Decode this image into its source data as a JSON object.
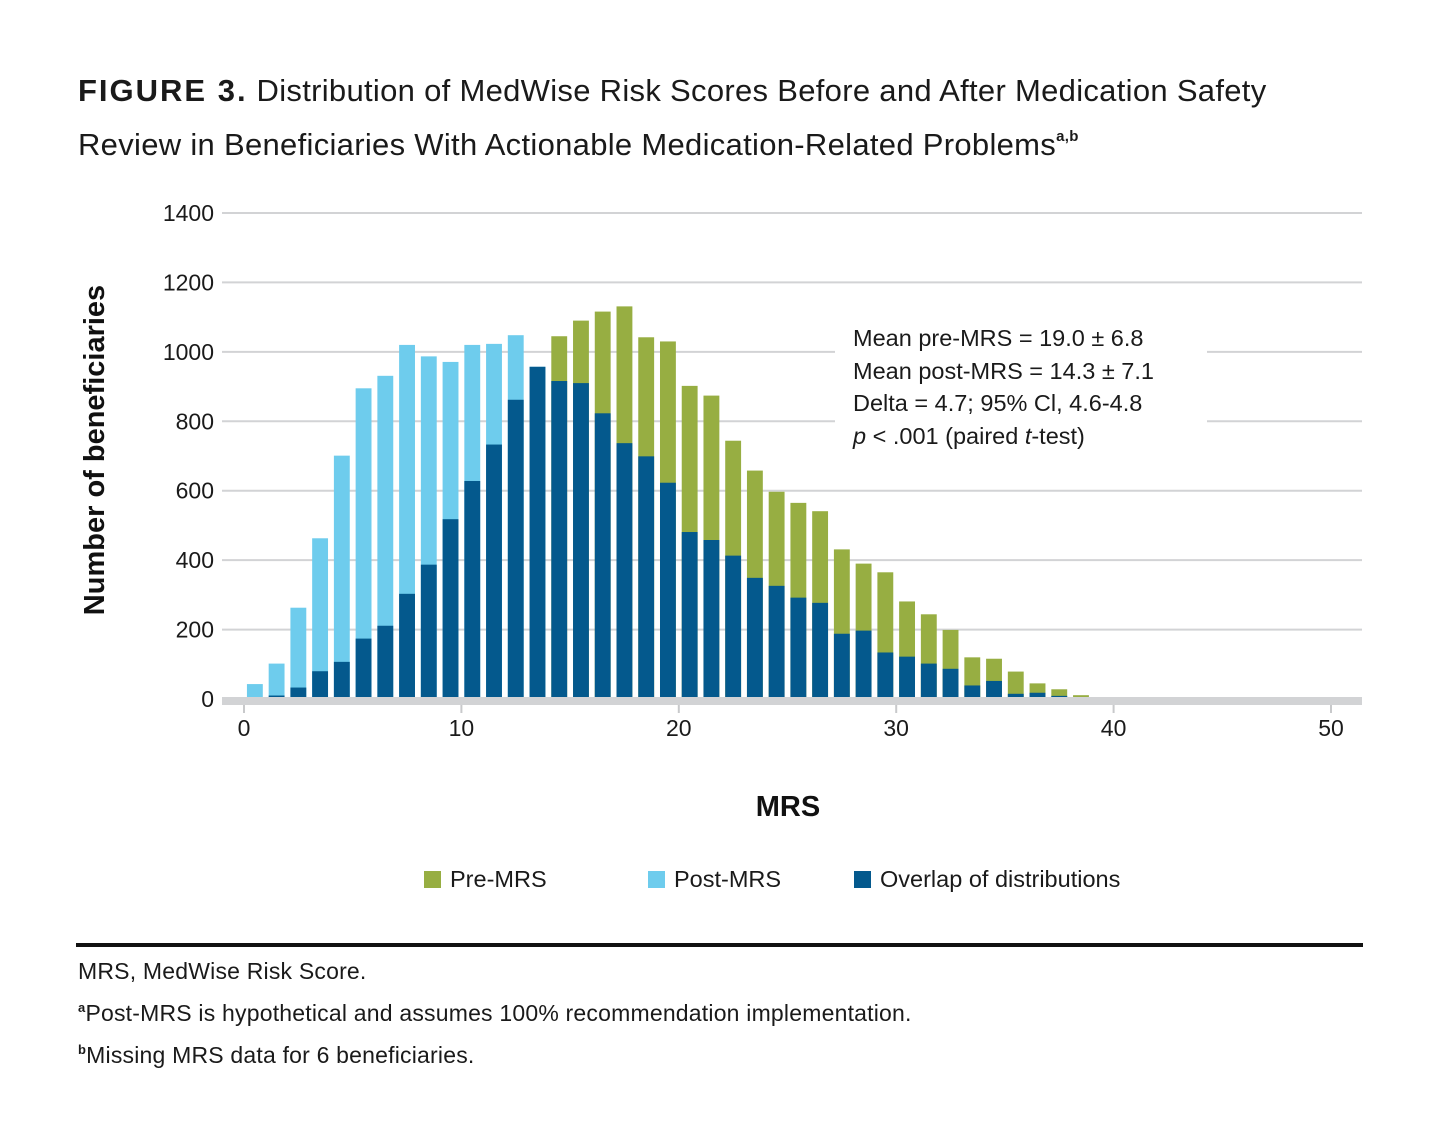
{
  "figure": {
    "label": "FIGURE 3.",
    "title_line1": "Distribution of MedWise Risk Scores Before and After Medication Safety",
    "title_line2": "Review in Beneficiaries With Actionable Medication-Related Problems",
    "title_superscript": "a,b"
  },
  "annotation": {
    "line1": "Mean pre-MRS = 19.0 ± 6.8",
    "line2": "Mean post-MRS = 14.3 ± 7.1",
    "line3": "Delta = 4.7; 95% Cl, 4.6-4.8",
    "line4_p": "p",
    "line4_mid": " < .001 (paired ",
    "line4_t": "t",
    "line4_end": "-test)"
  },
  "legend": [
    {
      "label": "Pre-MRS",
      "color": "#97ae42"
    },
    {
      "label": "Post-MRS",
      "color": "#6ecced"
    },
    {
      "label": "Overlap of distributions",
      "color": "#04598d"
    }
  ],
  "footnotes": {
    "abbrev": "MRS, MedWise Risk Score.",
    "a_mark": "a",
    "a_text": "Post-MRS is hypothetical and assumes 100% recommendation implementation.",
    "b_mark": "b",
    "b_text": "Missing MRS data for 6 beneficiaries."
  },
  "chart_data": {
    "type": "bar",
    "subtype": "overlapping histogram",
    "title": "Distribution of MedWise Risk Scores Before and After Medication Safety Review in Beneficiaries With Actionable Medication-Related Problems",
    "xlabel": "MRS",
    "ylabel": "Number of beneficiaries",
    "xlim": [
      0,
      50
    ],
    "ylim": [
      0,
      1400
    ],
    "xticks": [
      0,
      10,
      20,
      30,
      40,
      50
    ],
    "yticks": [
      0,
      200,
      400,
      600,
      800,
      1000,
      1200,
      1400
    ],
    "grid": "horizontal",
    "legend_position": "bottom",
    "bins": [
      0,
      1,
      2,
      3,
      4,
      5,
      6,
      7,
      8,
      9,
      10,
      11,
      12,
      13,
      14,
      15,
      16,
      17,
      18,
      19,
      20,
      21,
      22,
      23,
      24,
      25,
      26,
      27,
      28,
      29,
      30,
      31,
      32,
      33,
      34,
      35,
      36,
      37,
      38,
      39
    ],
    "series": [
      {
        "name": "Pre-MRS",
        "color": "#97ae42",
        "values": [
          2,
          10,
          33,
          80,
          107,
          174,
          211,
          303,
          387,
          518,
          628,
          733,
          862,
          957,
          1045,
          1090,
          1116,
          1131,
          1042,
          1030,
          902,
          874,
          744,
          658,
          597,
          565,
          541,
          431,
          390,
          365,
          281,
          244,
          199,
          120,
          116,
          79,
          45,
          28,
          11,
          4
        ]
      },
      {
        "name": "Post-MRS",
        "color": "#6ecced",
        "values": [
          43,
          102,
          263,
          463,
          701,
          895,
          931,
          1020,
          987,
          971,
          1020,
          1023,
          1048,
          957,
          916,
          910,
          823,
          737,
          699,
          623,
          481,
          458,
          413,
          349,
          326,
          292,
          277,
          188,
          197,
          134,
          122,
          102,
          87,
          39,
          52,
          15,
          18,
          9,
          0,
          0
        ]
      }
    ],
    "overlap": {
      "name": "Overlap of distributions",
      "color": "#04598d",
      "rule": "min(Pre-MRS, Post-MRS)"
    },
    "annotation": [
      "Mean pre-MRS = 19.0 ± 6.8",
      "Mean post-MRS = 14.3 ± 7.1",
      "Delta = 4.7; 95% Cl, 4.6-4.8",
      "p < .001 (paired t-test)"
    ]
  }
}
